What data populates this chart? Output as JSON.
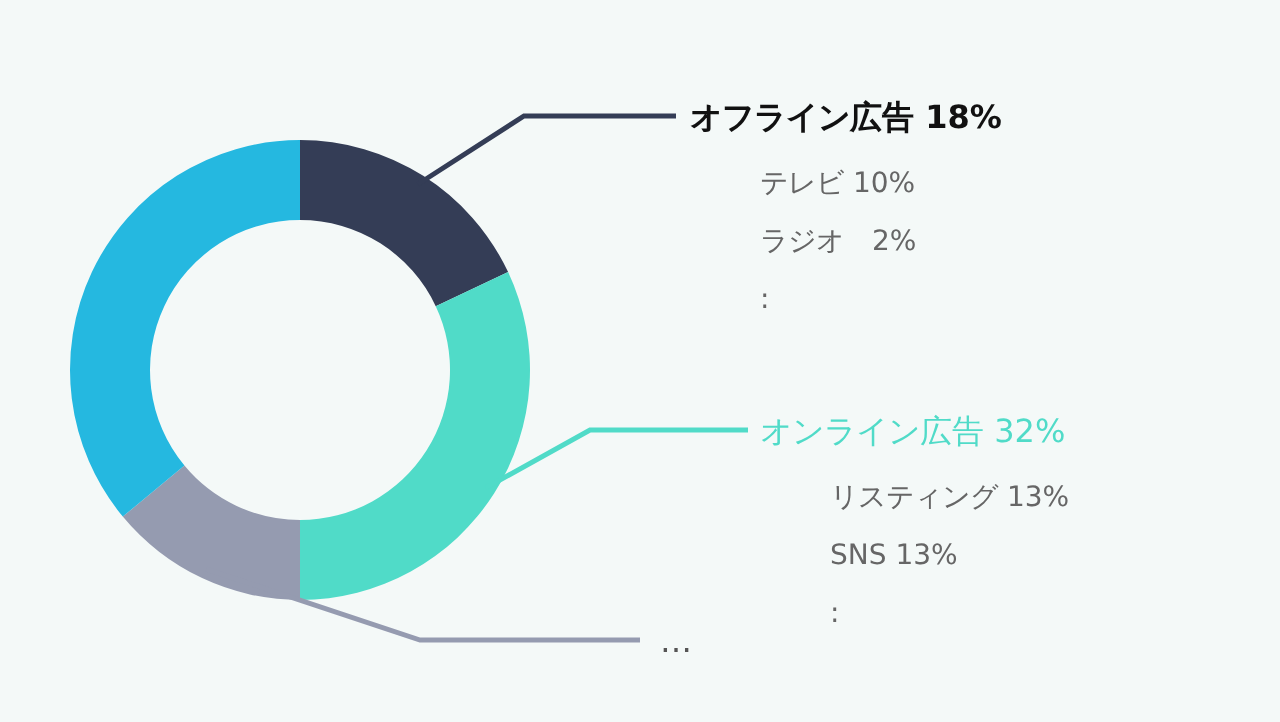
{
  "chart_data": {
    "type": "donut",
    "categories": [
      "オフライン広告",
      "オンライン広告",
      "…",
      null
    ],
    "values": [
      18,
      32,
      14,
      36
    ],
    "value_labels": [
      "18%",
      "32%",
      null,
      null
    ],
    "colors": [
      "#343d56",
      "#50dbc8",
      "#959bb0",
      "#25b8e0"
    ],
    "annotations": [
      "テレビ 10%",
      "ラジオ　2%",
      ":",
      "リスティング 13%",
      "SNS 13%",
      ":"
    ]
  }
}
